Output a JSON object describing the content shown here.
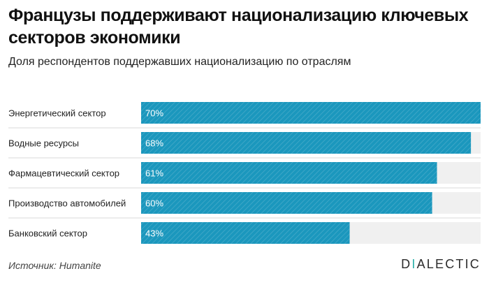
{
  "title": "Французы поддерживают национализацию ключевых секторов экономики",
  "subtitle": "Доля респондентов поддержавших национализацию по отраслям",
  "source": "Источник: Humanite",
  "logo": {
    "first": "D",
    "accent": "I",
    "rest": "ALECTIC"
  },
  "colors": {
    "bar": "#1b97bd",
    "track": "#f0f0f0",
    "separator": "#d8d8d8"
  },
  "chart_data": {
    "type": "bar",
    "orientation": "horizontal",
    "categories": [
      "Энергетический сектор",
      "Водные ресурсы",
      "Фармацевтический сектор",
      "Производство автомобилей",
      "Банковский сектор"
    ],
    "values": [
      70,
      68,
      61,
      60,
      43
    ],
    "labels": [
      "70%",
      "68%",
      "61%",
      "60%",
      "43%"
    ],
    "xlim": [
      0,
      70
    ],
    "unit": "%"
  }
}
